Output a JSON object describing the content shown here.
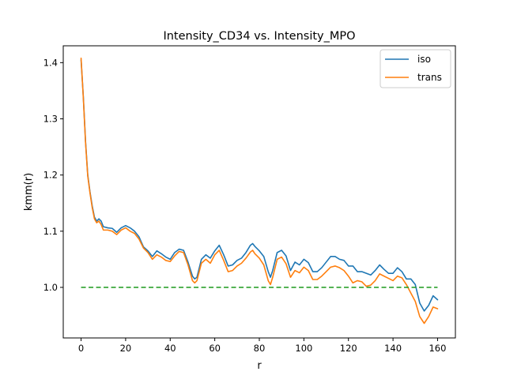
{
  "chart_data": {
    "type": "line",
    "title": "Intensity_CD34 vs. Intensity_MPO",
    "xlabel": "r",
    "ylabel": "kmm(r)",
    "xlim": [
      -8,
      168
    ],
    "ylim": [
      0.91,
      1.43
    ],
    "x_ticks": [
      "0",
      "20",
      "40",
      "60",
      "80",
      "100",
      "120",
      "140",
      "160"
    ],
    "y_ticks": [
      "1.0",
      "1.1",
      "1.2",
      "1.3",
      "1.4"
    ],
    "grid": false,
    "legend": {
      "position": "top-right",
      "entries": [
        "iso",
        "trans"
      ]
    },
    "series": [
      {
        "name": "iso",
        "color": "#1f77b4",
        "x": [
          0,
          1,
          2,
          3,
          4,
          5,
          6,
          7,
          8,
          9,
          10,
          12,
          14,
          16,
          18,
          20,
          22,
          24,
          26,
          28,
          30,
          32,
          34,
          36,
          38,
          40,
          42,
          44,
          46,
          48,
          50,
          51,
          52,
          54,
          56,
          58,
          60,
          62,
          64,
          66,
          68,
          70,
          72,
          74,
          76,
          77,
          78,
          80,
          82,
          84,
          85,
          86,
          88,
          90,
          92,
          94,
          96,
          98,
          100,
          102,
          104,
          106,
          108,
          110,
          112,
          114,
          116,
          118,
          120,
          122,
          124,
          126,
          128,
          130,
          132,
          134,
          136,
          138,
          140,
          142,
          144,
          146,
          148,
          150,
          152,
          154,
          156,
          158,
          160
        ],
        "y": [
          1.405,
          1.34,
          1.26,
          1.2,
          1.17,
          1.145,
          1.125,
          1.118,
          1.122,
          1.118,
          1.108,
          1.106,
          1.105,
          1.098,
          1.106,
          1.11,
          1.106,
          1.1,
          1.09,
          1.072,
          1.065,
          1.055,
          1.065,
          1.06,
          1.054,
          1.05,
          1.062,
          1.068,
          1.066,
          1.045,
          1.02,
          1.015,
          1.018,
          1.05,
          1.058,
          1.052,
          1.065,
          1.075,
          1.058,
          1.038,
          1.04,
          1.048,
          1.052,
          1.062,
          1.075,
          1.078,
          1.073,
          1.065,
          1.055,
          1.028,
          1.018,
          1.03,
          1.062,
          1.066,
          1.056,
          1.03,
          1.045,
          1.04,
          1.05,
          1.044,
          1.028,
          1.028,
          1.035,
          1.045,
          1.055,
          1.055,
          1.05,
          1.048,
          1.038,
          1.038,
          1.028,
          1.028,
          1.025,
          1.022,
          1.03,
          1.04,
          1.032,
          1.025,
          1.025,
          1.035,
          1.028,
          1.015,
          1.015,
          1.005,
          0.972,
          0.958,
          0.968,
          0.985,
          0.978
        ]
      },
      {
        "name": "trans",
        "color": "#ff7f0e",
        "x": [
          0,
          1,
          2,
          3,
          4,
          5,
          6,
          7,
          8,
          9,
          10,
          12,
          14,
          16,
          18,
          20,
          22,
          24,
          26,
          28,
          30,
          32,
          34,
          36,
          38,
          40,
          42,
          44,
          46,
          48,
          50,
          51,
          52,
          54,
          56,
          58,
          60,
          62,
          64,
          66,
          68,
          70,
          72,
          74,
          76,
          77,
          78,
          80,
          82,
          84,
          85,
          86,
          88,
          90,
          92,
          94,
          96,
          98,
          100,
          102,
          104,
          106,
          108,
          110,
          112,
          114,
          116,
          118,
          120,
          122,
          124,
          126,
          128,
          130,
          132,
          134,
          136,
          138,
          140,
          142,
          144,
          146,
          148,
          150,
          152,
          154,
          156,
          158,
          160
        ],
        "y": [
          1.408,
          1.338,
          1.258,
          1.198,
          1.168,
          1.142,
          1.122,
          1.115,
          1.118,
          1.112,
          1.102,
          1.102,
          1.1,
          1.094,
          1.102,
          1.106,
          1.1,
          1.096,
          1.086,
          1.07,
          1.062,
          1.05,
          1.058,
          1.054,
          1.048,
          1.046,
          1.056,
          1.064,
          1.062,
          1.04,
          1.012,
          1.008,
          1.012,
          1.043,
          1.05,
          1.043,
          1.058,
          1.066,
          1.048,
          1.028,
          1.03,
          1.038,
          1.043,
          1.052,
          1.063,
          1.066,
          1.06,
          1.052,
          1.04,
          1.012,
          1.005,
          1.018,
          1.05,
          1.054,
          1.042,
          1.018,
          1.03,
          1.026,
          1.036,
          1.03,
          1.014,
          1.014,
          1.02,
          1.028,
          1.036,
          1.038,
          1.035,
          1.03,
          1.02,
          1.008,
          1.012,
          1.01,
          1.002,
          1.004,
          1.012,
          1.024,
          1.02,
          1.016,
          1.012,
          1.02,
          1.017,
          1.005,
          0.99,
          0.975,
          0.948,
          0.936,
          0.948,
          0.965,
          0.962
        ]
      },
      {
        "name": "",
        "color": "#2ca02c",
        "dashed": true,
        "x": [
          0,
          160
        ],
        "y": [
          1.0,
          1.0
        ]
      }
    ]
  }
}
